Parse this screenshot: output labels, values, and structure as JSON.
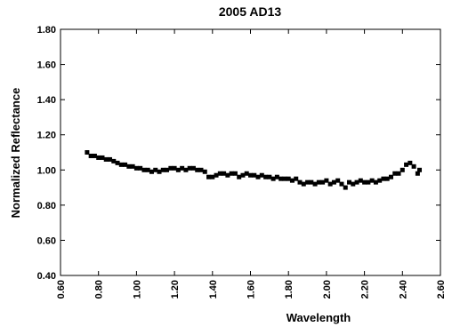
{
  "chart_data": {
    "type": "scatter",
    "title": "2005 AD13",
    "x_label": "Wavelength",
    "y_label": "Normalized Reflectance",
    "color": "#000000",
    "x": [
      0.74,
      0.76,
      0.78,
      0.8,
      0.82,
      0.84,
      0.86,
      0.88,
      0.9,
      0.92,
      0.94,
      0.96,
      0.98,
      1.0,
      1.02,
      1.04,
      1.06,
      1.08,
      1.1,
      1.12,
      1.14,
      1.16,
      1.18,
      1.2,
      1.22,
      1.24,
      1.26,
      1.28,
      1.3,
      1.32,
      1.34,
      1.36,
      1.38,
      1.4,
      1.42,
      1.44,
      1.46,
      1.48,
      1.5,
      1.52,
      1.54,
      1.56,
      1.58,
      1.6,
      1.62,
      1.64,
      1.66,
      1.68,
      1.7,
      1.72,
      1.74,
      1.76,
      1.78,
      1.8,
      1.82,
      1.84,
      1.86,
      1.88,
      1.9,
      1.92,
      1.94,
      1.96,
      1.98,
      2.0,
      2.02,
      2.04,
      2.06,
      2.08,
      2.1,
      2.12,
      2.14,
      2.16,
      2.18,
      2.2,
      2.22,
      2.24,
      2.26,
      2.28,
      2.3,
      2.32,
      2.34,
      2.36,
      2.38,
      2.4,
      2.42,
      2.44,
      2.46,
      2.48,
      2.49
    ],
    "values": [
      1.1,
      1.08,
      1.08,
      1.07,
      1.07,
      1.06,
      1.06,
      1.05,
      1.04,
      1.03,
      1.03,
      1.02,
      1.02,
      1.01,
      1.01,
      1.0,
      1.0,
      0.99,
      1.0,
      0.99,
      1.0,
      1.0,
      1.01,
      1.01,
      1.0,
      1.01,
      1.0,
      1.01,
      1.01,
      1.0,
      1.0,
      0.99,
      0.96,
      0.96,
      0.97,
      0.98,
      0.98,
      0.97,
      0.98,
      0.98,
      0.96,
      0.97,
      0.98,
      0.97,
      0.97,
      0.96,
      0.97,
      0.96,
      0.96,
      0.95,
      0.96,
      0.95,
      0.95,
      0.95,
      0.94,
      0.95,
      0.93,
      0.92,
      0.93,
      0.93,
      0.92,
      0.93,
      0.93,
      0.94,
      0.92,
      0.93,
      0.94,
      0.92,
      0.9,
      0.93,
      0.92,
      0.93,
      0.94,
      0.93,
      0.93,
      0.94,
      0.93,
      0.94,
      0.95,
      0.95,
      0.96,
      0.98,
      0.98,
      1.0,
      1.03,
      1.04,
      1.02,
      0.98,
      1.0
    ],
    "xlim": [
      0.6,
      2.6
    ],
    "xticks": [
      {
        "value": 0.6,
        "label": "0.60"
      },
      {
        "value": 0.8,
        "label": "0.80"
      },
      {
        "value": 1.0,
        "label": "1.00"
      },
      {
        "value": 1.2,
        "label": "1.20"
      },
      {
        "value": 1.4,
        "label": "1.40"
      },
      {
        "value": 1.6,
        "label": "1.60"
      },
      {
        "value": 1.8,
        "label": "1.80"
      },
      {
        "value": 2.0,
        "label": "2.00"
      },
      {
        "value": 2.2,
        "label": "2.20"
      },
      {
        "value": 2.4,
        "label": "2.40"
      },
      {
        "value": 2.6,
        "label": "2.60"
      }
    ],
    "ylim": [
      0.4,
      1.8
    ],
    "yticks": [
      {
        "value": 0.4,
        "label": "0.40"
      },
      {
        "value": 0.6,
        "label": "0.60"
      },
      {
        "value": 0.8,
        "label": "0.80"
      },
      {
        "value": 1.0,
        "label": "1.00"
      },
      {
        "value": 1.2,
        "label": "1.20"
      },
      {
        "value": 1.4,
        "label": "1.40"
      },
      {
        "value": 1.6,
        "label": "1.60"
      },
      {
        "value": 1.8,
        "label": "1.80"
      }
    ],
    "grid": false
  }
}
